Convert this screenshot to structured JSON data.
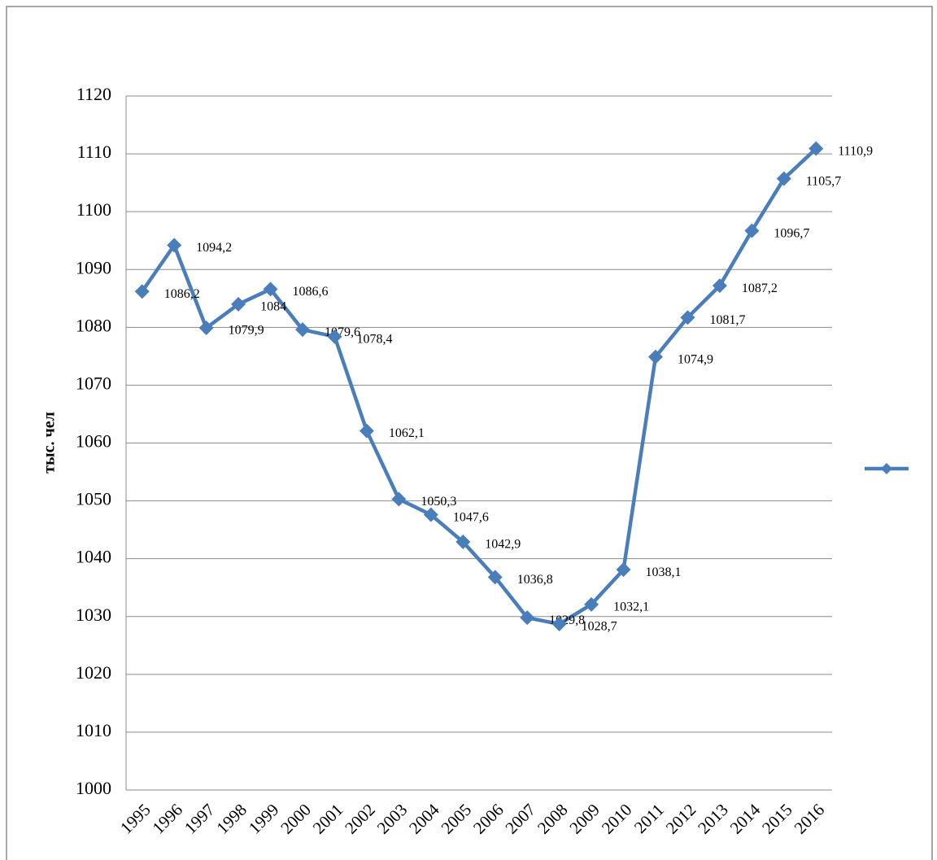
{
  "chart_data": {
    "type": "line",
    "ylabel": "тыс. чел",
    "categories": [
      "1995",
      "1996",
      "1997",
      "1998",
      "1999",
      "2000",
      "2001",
      "2002",
      "2003",
      "2004",
      "2005",
      "2006",
      "2007",
      "2008",
      "2009",
      "2010",
      "2011",
      "2012",
      "2013",
      "2014",
      "2015",
      "2016"
    ],
    "series": [
      {
        "color": "#4a7ebb",
        "values": [
          1086.2,
          1094.2,
          1079.9,
          1084,
          1086.6,
          1079.6,
          1078.4,
          1062.1,
          1050.3,
          1047.6,
          1042.9,
          1036.8,
          1029.8,
          1028.7,
          1032.1,
          1038.1,
          1074.9,
          1081.7,
          1087.2,
          1096.7,
          1105.7,
          1110.9
        ],
        "value_labels": [
          "1086,2",
          "1094,2",
          "1079,9",
          "1084",
          "1086,6",
          "1079,6",
          "1078,4",
          "1062,1",
          "1050,3",
          "1047,6",
          "1042,9",
          "1036,8",
          "1029,8",
          "1028,7",
          "1032,1",
          "1038,1",
          "1074,9",
          "1081,7",
          "1087,2",
          "1096,7",
          "1105,7",
          "1110,9"
        ]
      }
    ],
    "ylim": [
      1000,
      1120
    ],
    "yticks": [
      1000,
      1010,
      1020,
      1030,
      1040,
      1050,
      1060,
      1070,
      1080,
      1090,
      1100,
      1110,
      1120
    ],
    "grid": true,
    "legend": "right"
  }
}
